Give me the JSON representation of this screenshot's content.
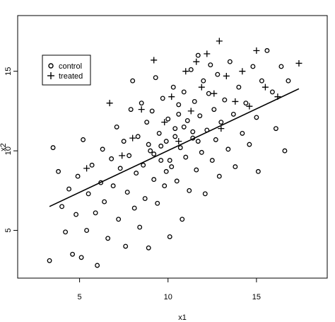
{
  "chart_data": {
    "type": "scatter",
    "title": "",
    "xlabel": "x1",
    "ylabel": "x2",
    "xlim": [
      1.5,
      19.0
    ],
    "ylim": [
      2.0,
      18.5
    ],
    "xticks": [
      5,
      10,
      15
    ],
    "yticks": [
      5,
      10,
      15
    ],
    "grid": false,
    "legend": {
      "position": "top-left"
    },
    "series": [
      {
        "name": "control",
        "marker": "circle",
        "points": [
          [
            3.3,
            3.1
          ],
          [
            3.5,
            10.2
          ],
          [
            3.8,
            8.7
          ],
          [
            4.0,
            6.5
          ],
          [
            4.2,
            4.9
          ],
          [
            4.4,
            7.6
          ],
          [
            4.6,
            3.5
          ],
          [
            4.8,
            6.0
          ],
          [
            4.9,
            8.4
          ],
          [
            5.1,
            3.3
          ],
          [
            5.2,
            10.7
          ],
          [
            5.4,
            5.0
          ],
          [
            5.5,
            7.3
          ],
          [
            5.7,
            9.1
          ],
          [
            5.9,
            6.1
          ],
          [
            6.0,
            2.8
          ],
          [
            6.2,
            8.0
          ],
          [
            6.3,
            10.1
          ],
          [
            6.4,
            6.8
          ],
          [
            6.6,
            4.5
          ],
          [
            6.8,
            9.5
          ],
          [
            6.9,
            7.8
          ],
          [
            7.1,
            11.5
          ],
          [
            7.2,
            5.7
          ],
          [
            7.3,
            8.9
          ],
          [
            7.5,
            10.6
          ],
          [
            7.6,
            4.0
          ],
          [
            7.7,
            7.4
          ],
          [
            7.8,
            9.7
          ],
          [
            7.9,
            12.6
          ],
          [
            8.0,
            14.4
          ],
          [
            8.1,
            6.4
          ],
          [
            8.2,
            8.6
          ],
          [
            8.3,
            10.9
          ],
          [
            8.4,
            5.2
          ],
          [
            8.5,
            13.0
          ],
          [
            8.6,
            9.1
          ],
          [
            8.7,
            7.0
          ],
          [
            8.8,
            11.8
          ],
          [
            8.9,
            3.9
          ],
          [
            9.0,
            10.0
          ],
          [
            9.1,
            12.5
          ],
          [
            9.2,
            8.2
          ],
          [
            9.3,
            14.6
          ],
          [
            9.4,
            6.7
          ],
          [
            9.5,
            11.1
          ],
          [
            9.6,
            9.4
          ],
          [
            9.7,
            13.3
          ],
          [
            9.8,
            7.8
          ],
          [
            9.9,
            10.6
          ],
          [
            10.0,
            12.0
          ],
          [
            10.1,
            4.6
          ],
          [
            10.2,
            9.0
          ],
          [
            10.3,
            14.0
          ],
          [
            10.4,
            11.4
          ],
          [
            10.5,
            8.1
          ],
          [
            10.6,
            12.9
          ],
          [
            10.7,
            10.2
          ],
          [
            10.8,
            5.7
          ],
          [
            10.9,
            13.7
          ],
          [
            11.0,
            9.6
          ],
          [
            11.1,
            11.9
          ],
          [
            11.2,
            7.5
          ],
          [
            11.3,
            15.1
          ],
          [
            11.4,
            10.8
          ],
          [
            11.5,
            13.1
          ],
          [
            11.6,
            8.8
          ],
          [
            11.7,
            16.0
          ],
          [
            11.8,
            12.2
          ],
          [
            11.9,
            9.9
          ],
          [
            12.0,
            14.4
          ],
          [
            12.1,
            7.3
          ],
          [
            12.2,
            11.3
          ],
          [
            12.3,
            13.6
          ],
          [
            12.4,
            15.4
          ],
          [
            12.5,
            9.4
          ],
          [
            12.6,
            12.6
          ],
          [
            12.7,
            10.7
          ],
          [
            12.8,
            14.8
          ],
          [
            12.9,
            8.4
          ],
          [
            13.0,
            11.8
          ],
          [
            13.2,
            13.2
          ],
          [
            13.4,
            10.1
          ],
          [
            13.5,
            15.6
          ],
          [
            13.7,
            12.3
          ],
          [
            13.8,
            9.0
          ],
          [
            14.0,
            14.0
          ],
          [
            14.2,
            11.1
          ],
          [
            14.4,
            13.0
          ],
          [
            14.6,
            10.4
          ],
          [
            14.8,
            15.3
          ],
          [
            15.0,
            12.1
          ],
          [
            15.1,
            8.7
          ],
          [
            15.3,
            14.4
          ],
          [
            15.6,
            16.3
          ],
          [
            15.9,
            13.7
          ],
          [
            16.1,
            11.4
          ],
          [
            16.4,
            15.3
          ],
          [
            16.6,
            10.0
          ],
          [
            16.8,
            14.4
          ],
          [
            9.6,
            10.3
          ],
          [
            10.4,
            10.9
          ],
          [
            10.9,
            11.5
          ],
          [
            9.2,
            9.8
          ],
          [
            11.4,
            11.2
          ],
          [
            10.1,
            9.4
          ],
          [
            8.9,
            10.4
          ],
          [
            11.7,
            10.6
          ],
          [
            10.6,
            12.3
          ],
          [
            9.9,
            8.7
          ]
        ]
      },
      {
        "name": "treated",
        "marker": "plus",
        "points": [
          [
            5.4,
            8.9
          ],
          [
            6.7,
            13.0
          ],
          [
            7.4,
            9.7
          ],
          [
            8.0,
            10.8
          ],
          [
            8.5,
            12.6
          ],
          [
            9.2,
            15.7
          ],
          [
            9.8,
            11.8
          ],
          [
            10.2,
            13.4
          ],
          [
            10.6,
            10.6
          ],
          [
            11.0,
            15.0
          ],
          [
            11.3,
            12.5
          ],
          [
            11.6,
            15.6
          ],
          [
            11.9,
            14.0
          ],
          [
            12.2,
            16.1
          ],
          [
            12.6,
            13.6
          ],
          [
            12.9,
            16.9
          ],
          [
            13.3,
            14.7
          ],
          [
            13.8,
            13.1
          ],
          [
            14.2,
            15.0
          ],
          [
            14.6,
            12.8
          ],
          [
            15.0,
            16.3
          ],
          [
            15.5,
            14.0
          ],
          [
            16.2,
            13.4
          ],
          [
            17.4,
            15.5
          ],
          [
            13.0,
            11.4
          ]
        ]
      }
    ],
    "fit_line": {
      "x": [
        3.3,
        17.4
      ],
      "y": [
        6.5,
        13.9
      ]
    }
  }
}
